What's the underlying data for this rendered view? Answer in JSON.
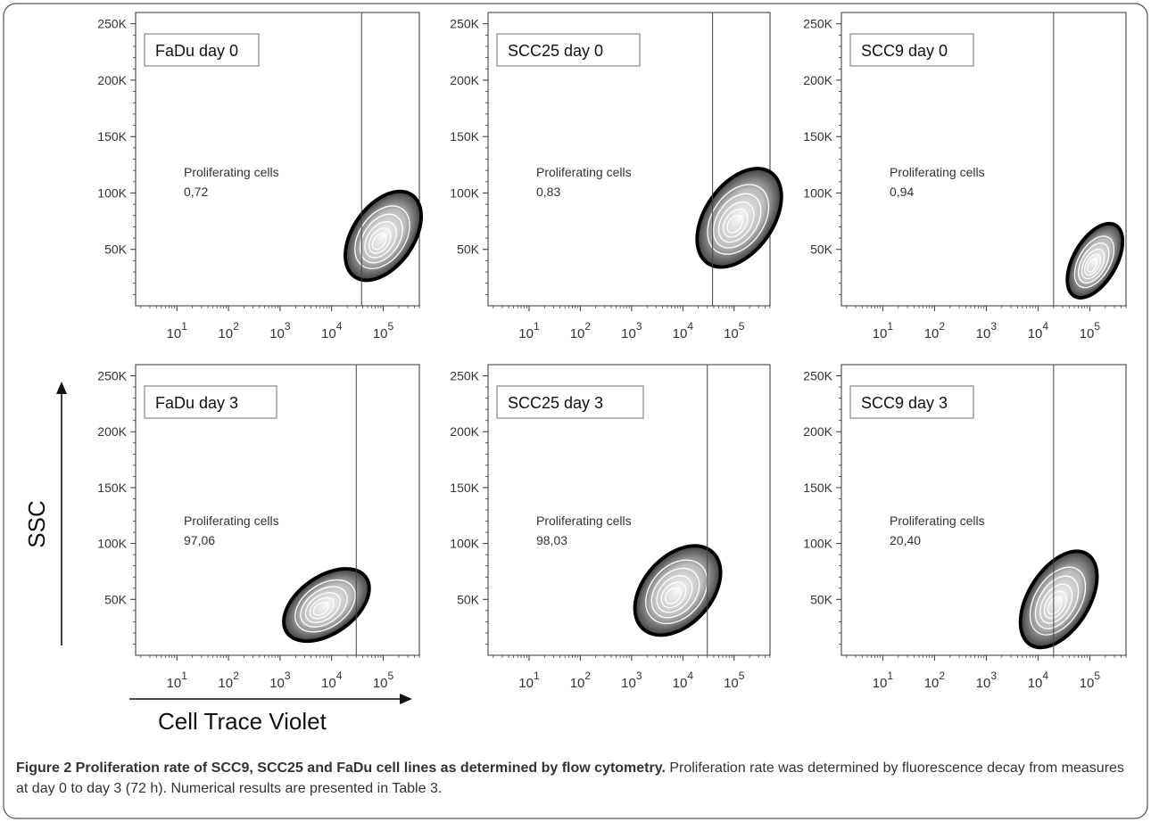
{
  "figure": {
    "caption_title": "Figure 2 Proliferation rate of SCC9, SCC25 and FaDu cell lines as determined by flow cytometry.",
    "caption_text": "Proliferation rate was determined by fluorescence decay from measures at day 0 to day 3 (72 h). Numerical results are presented in Table 3.",
    "y_axis_title": "SSC",
    "x_axis_title": "Cell Trace Violet",
    "outline_color": "#000000",
    "density_colors": [
      "#f2f2f2",
      "#555555",
      "#000000"
    ]
  },
  "chart_data": [
    {
      "type": "contour",
      "panel_label": "FaDu day 0",
      "gate_label": "Proliferating cells",
      "gate_value": "0,72",
      "x_scale": "log",
      "x_ticks": [
        "10^1",
        "10^2",
        "10^3",
        "10^4",
        "10^5"
      ],
      "y_ticks": [
        "250K",
        "200K",
        "150K",
        "100K",
        "50K"
      ],
      "ylim": [
        0,
        260000
      ],
      "gate_x": 38000,
      "population": {
        "center_log_x": 5.0,
        "center_y": 62000
      }
    },
    {
      "type": "contour",
      "panel_label": "SCC25 day 0",
      "gate_label": "Proliferating cells",
      "gate_value": "0,83",
      "x_scale": "log",
      "x_ticks": [
        "10^1",
        "10^2",
        "10^3",
        "10^4",
        "10^5"
      ],
      "y_ticks": [
        "250K",
        "200K",
        "150K",
        "100K",
        "50K"
      ],
      "ylim": [
        0,
        260000
      ],
      "gate_x": 38000,
      "population": {
        "center_log_x": 5.1,
        "center_y": 78000
      }
    },
    {
      "type": "contour",
      "panel_label": "SCC9 day 0",
      "gate_label": "Proliferating cells",
      "gate_value": "0,94",
      "x_scale": "log",
      "x_ticks": [
        "10^1",
        "10^2",
        "10^3",
        "10^4",
        "10^5"
      ],
      "y_ticks": [
        "250K",
        "200K",
        "150K",
        "100K",
        "50K"
      ],
      "ylim": [
        0,
        260000
      ],
      "gate_x": 20000,
      "population": {
        "center_log_x": 5.1,
        "center_y": 40000
      }
    },
    {
      "type": "contour",
      "panel_label": "FaDu day 3",
      "gate_label": "Proliferating cells",
      "gate_value": "97,06",
      "x_scale": "log",
      "x_ticks": [
        "10^1",
        "10^2",
        "10^3",
        "10^4",
        "10^5"
      ],
      "y_ticks": [
        "250K",
        "200K",
        "150K",
        "100K",
        "50K"
      ],
      "ylim": [
        0,
        260000
      ],
      "gate_x": 30000,
      "population": {
        "center_log_x": 3.9,
        "center_y": 45000
      }
    },
    {
      "type": "contour",
      "panel_label": "SCC25 day 3",
      "gate_label": "Proliferating cells",
      "gate_value": "98,03",
      "x_scale": "log",
      "x_ticks": [
        "10^1",
        "10^2",
        "10^3",
        "10^4",
        "10^5"
      ],
      "y_ticks": [
        "250K",
        "200K",
        "150K",
        "100K",
        "50K"
      ],
      "ylim": [
        0,
        260000
      ],
      "gate_x": 30000,
      "population": {
        "center_log_x": 3.9,
        "center_y": 58000
      }
    },
    {
      "type": "contour",
      "panel_label": "SCC9 day 3",
      "gate_label": "Proliferating cells",
      "gate_value": "20,40",
      "x_scale": "log",
      "x_ticks": [
        "10^1",
        "10^2",
        "10^3",
        "10^4",
        "10^5"
      ],
      "y_ticks": [
        "250K",
        "200K",
        "150K",
        "100K",
        "50K"
      ],
      "ylim": [
        0,
        260000
      ],
      "gate_x": 20000,
      "population": {
        "center_log_x": 4.4,
        "center_y": 50000
      }
    }
  ]
}
